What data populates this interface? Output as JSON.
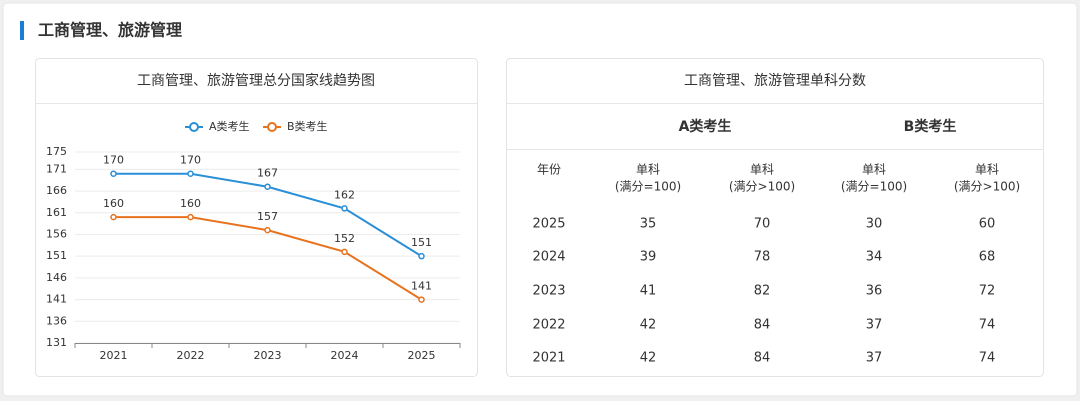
{
  "header": {
    "title": "工商管理、旅游管理"
  },
  "chart_data": {
    "type": "line",
    "title": "工商管理、旅游管理总分国家线趋势图",
    "categories": [
      "2021",
      "2022",
      "2023",
      "2024",
      "2025"
    ],
    "series": [
      {
        "name": "A类考生",
        "color": "#2a8fd7",
        "values": [
          170,
          170,
          167,
          162,
          151
        ]
      },
      {
        "name": "B类考生",
        "color": "#e8731f",
        "values": [
          160,
          160,
          157,
          152,
          141
        ]
      }
    ],
    "ylim": [
      131,
      175
    ],
    "yticks": [
      131,
      136,
      141,
      146,
      151,
      156,
      161,
      166,
      171,
      175
    ],
    "grid": true,
    "legend": "top"
  },
  "table": {
    "title": "工商管理、旅游管理单科分数",
    "groups": [
      {
        "name": "A类考生",
        "color": "#2a8fd7"
      },
      {
        "name": "B类考生",
        "color": "#e8731f"
      }
    ],
    "columns": [
      [
        "年份"
      ],
      [
        "单科",
        "(满分=100)"
      ],
      [
        "单科",
        "(满分>100)"
      ],
      [
        "单科",
        "(满分=100)"
      ],
      [
        "单科",
        "(满分>100)"
      ]
    ],
    "rows": [
      [
        "2025",
        35,
        70,
        30,
        60
      ],
      [
        "2024",
        39,
        78,
        34,
        68
      ],
      [
        "2023",
        41,
        82,
        36,
        72
      ],
      [
        "2022",
        42,
        84,
        37,
        74
      ],
      [
        "2021",
        42,
        84,
        37,
        74
      ]
    ]
  }
}
